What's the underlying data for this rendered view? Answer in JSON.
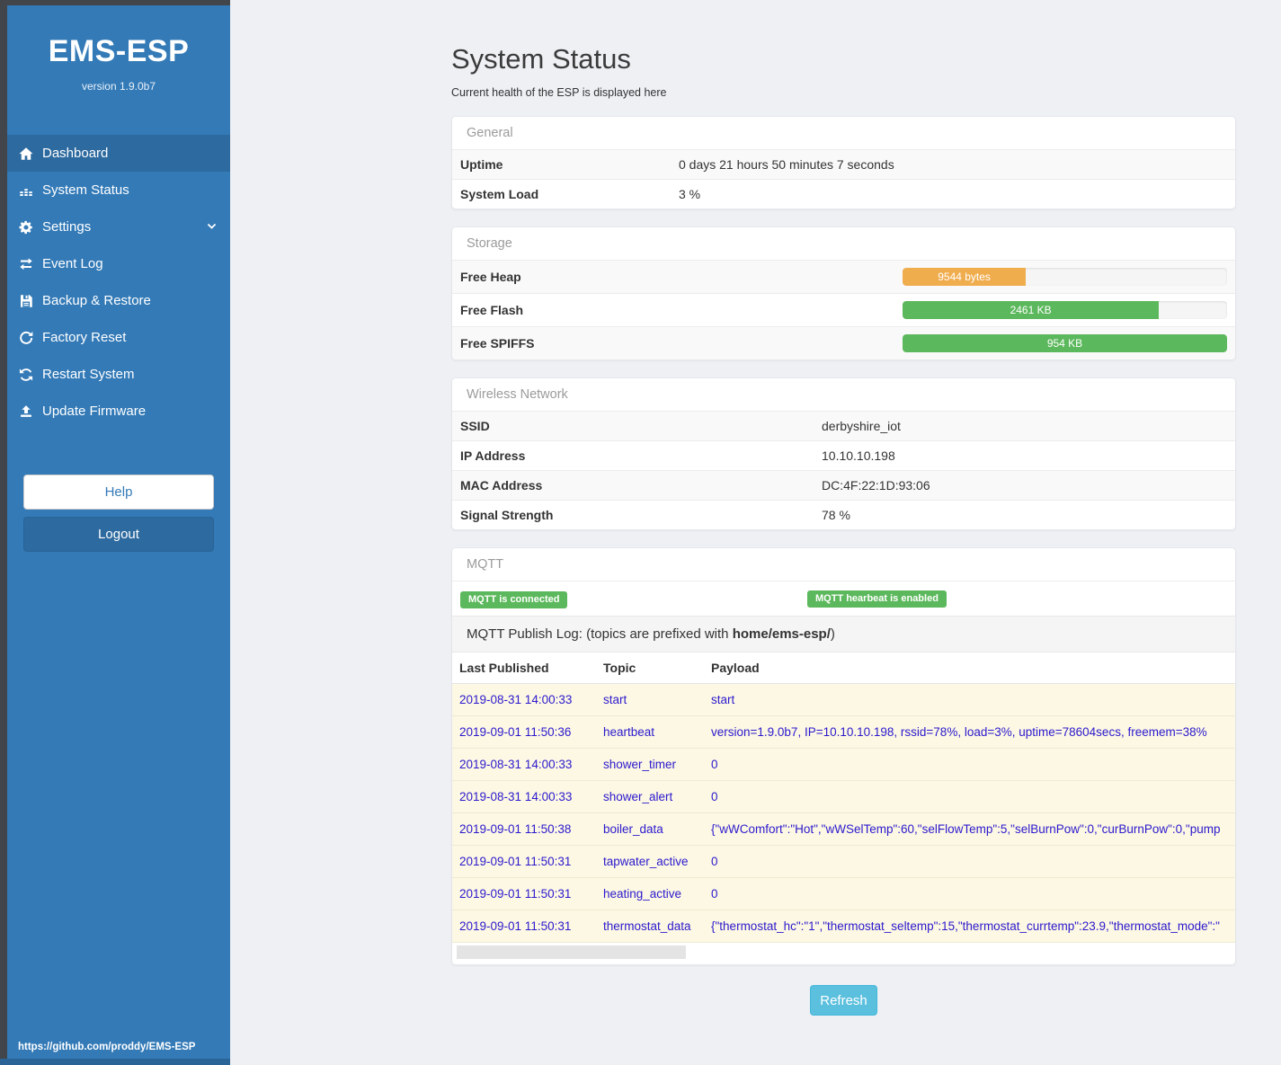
{
  "sidebar": {
    "title": "EMS-ESP",
    "version": "version 1.9.0b7",
    "items": [
      {
        "label": "Dashboard",
        "icon": "home-icon",
        "active": true,
        "chevron": false
      },
      {
        "label": "System Status",
        "icon": "system-status-icon",
        "active": false,
        "chevron": false
      },
      {
        "label": "Settings",
        "icon": "gear-icon",
        "active": false,
        "chevron": true
      },
      {
        "label": "Event Log",
        "icon": "swap-arrows-icon",
        "active": false,
        "chevron": false
      },
      {
        "label": "Backup & Restore",
        "icon": "floppy-save-icon",
        "active": false,
        "chevron": false
      },
      {
        "label": "Factory Reset",
        "icon": "reset-arrow-icon",
        "active": false,
        "chevron": false
      },
      {
        "label": "Restart System",
        "icon": "restart-arrows-icon",
        "active": false,
        "chevron": false
      },
      {
        "label": "Update Firmware",
        "icon": "upload-icon",
        "active": false,
        "chevron": false
      }
    ],
    "help_label": "Help",
    "logout_label": "Logout",
    "footer_url": "https://github.com/proddy/EMS-ESP"
  },
  "header": {
    "title": "System Status",
    "subtitle": "Current health of the ESP is displayed here"
  },
  "panels": {
    "general": {
      "title": "General",
      "rows": [
        {
          "label": "Uptime",
          "value": "0 days 21 hours 50 minutes 7 seconds"
        },
        {
          "label": "System Load",
          "value": "3 %"
        }
      ]
    },
    "storage": {
      "title": "Storage",
      "rows": [
        {
          "label": "Free Heap",
          "bar_label": "9544 bytes",
          "percent": 38,
          "bar_color": "#f0ad4e"
        },
        {
          "label": "Free Flash",
          "bar_label": "2461 KB",
          "percent": 79,
          "bar_color": "#5cb85c"
        },
        {
          "label": "Free SPIFFS",
          "bar_label": "954 KB",
          "percent": 100,
          "bar_color": "#5cb85c"
        }
      ]
    },
    "wireless": {
      "title": "Wireless Network",
      "rows": [
        {
          "label": "SSID",
          "value": "derbyshire_iot"
        },
        {
          "label": "IP Address",
          "value": "10.10.10.198"
        },
        {
          "label": "MAC Address",
          "value": "DC:4F:22:1D:93:06"
        },
        {
          "label": "Signal Strength",
          "value": "78 %"
        }
      ]
    },
    "mqtt": {
      "title": "MQTT",
      "badges": [
        "MQTT is connected",
        "MQTT hearbeat is enabled"
      ],
      "log_prefix": "MQTT Publish Log: (topics are prefixed with ",
      "log_bold": "home/ems-esp/",
      "log_suffix": ")",
      "table": {
        "headers": [
          "Last Published",
          "Topic",
          "Payload"
        ],
        "rows": [
          {
            "time": "2019-08-31 14:00:33",
            "topic": "start",
            "payload": "start"
          },
          {
            "time": "2019-09-01 11:50:36",
            "topic": "heartbeat",
            "payload": "version=1.9.0b7, IP=10.10.10.198, rssid=78%, load=3%, uptime=78604secs, freemem=38%"
          },
          {
            "time": "2019-08-31 14:00:33",
            "topic": "shower_timer",
            "payload": "0"
          },
          {
            "time": "2019-08-31 14:00:33",
            "topic": "shower_alert",
            "payload": "0"
          },
          {
            "time": "2019-09-01 11:50:38",
            "topic": "boiler_data",
            "payload": "{\"wWComfort\":\"Hot\",\"wWSelTemp\":60,\"selFlowTemp\":5,\"selBurnPow\":0,\"curBurnPow\":0,\"pump"
          },
          {
            "time": "2019-09-01 11:50:31",
            "topic": "tapwater_active",
            "payload": "0"
          },
          {
            "time": "2019-09-01 11:50:31",
            "topic": "heating_active",
            "payload": "0"
          },
          {
            "time": "2019-09-01 11:50:31",
            "topic": "thermostat_data",
            "payload": "{\"thermostat_hc\":\"1\",\"thermostat_seltemp\":15,\"thermostat_currtemp\":23.9,\"thermostat_mode\":\""
          }
        ]
      }
    }
  },
  "refresh_label": "Refresh",
  "colors": {
    "sidebar_blue": "#337ab7",
    "sidebar_active": "#2d6a9f",
    "success_green": "#5cb85c",
    "warning_orange": "#f0ad4e",
    "info_blue": "#5bc0de",
    "log_text_blue": "#2d19ce",
    "row_cream": "#fcf8e3"
  }
}
